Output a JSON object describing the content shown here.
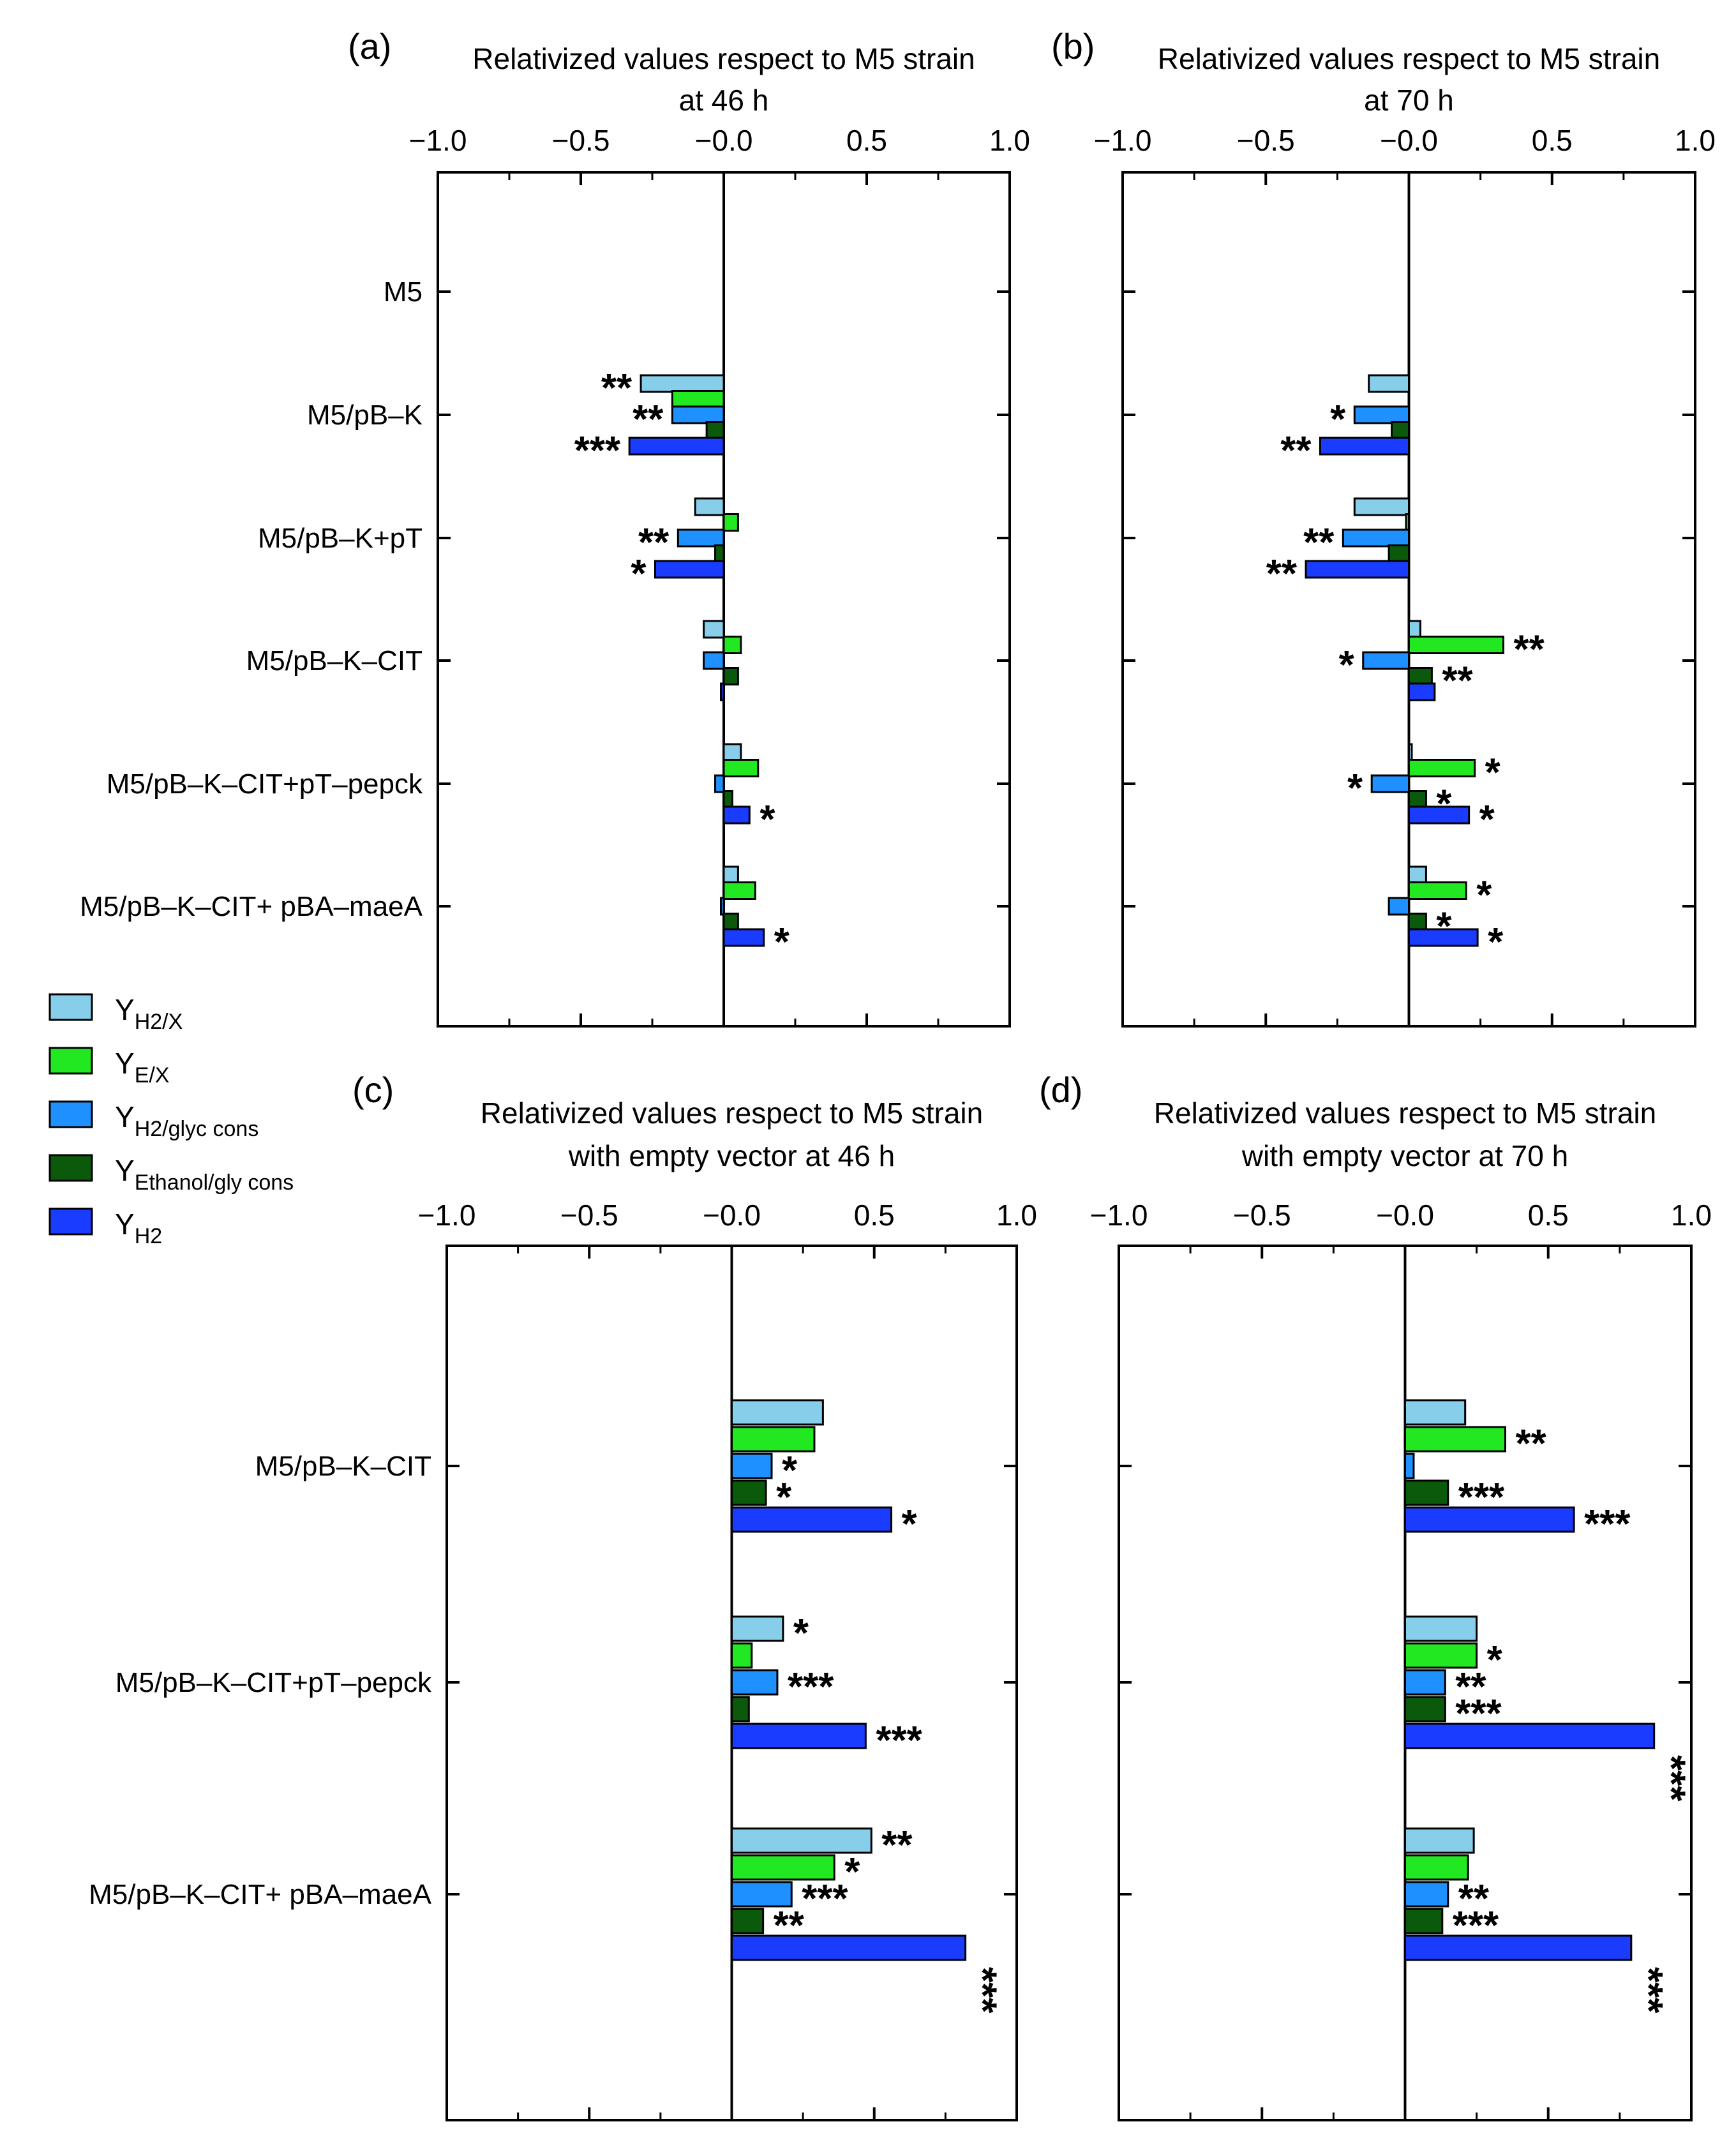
{
  "colors": {
    "y_h2_x": "#87ceeb",
    "y_e_x": "#22e822",
    "y_h2_glyc": "#1e90ff",
    "y_eth_gly": "#0b5a0b",
    "y_h2": "#1a3cff"
  },
  "legend": [
    {
      "key": "y_h2_x",
      "main": "Y",
      "sub": "H2/X"
    },
    {
      "key": "y_e_x",
      "main": "Y",
      "sub": "E/X"
    },
    {
      "key": "y_h2_glyc",
      "main": "Y",
      "sub": "H2/glyc cons"
    },
    {
      "key": "y_eth_gly",
      "main": "Y",
      "sub": "Ethanol/gly cons"
    },
    {
      "key": "y_h2",
      "main": "Y",
      "sub": "H2"
    }
  ],
  "chart_data": [
    {
      "panel": "(a)",
      "type": "bar",
      "orientation": "horizontal",
      "title_lines": [
        "Relativized values respect to M5 strain",
        "at 46 h"
      ],
      "xlim": [
        -1.0,
        1.0
      ],
      "xticks": [
        "−1.0",
        "−0.5",
        "−0.0",
        "0.5",
        "1.0"
      ],
      "xtick_values": [
        -1.0,
        -0.5,
        0.0,
        0.5,
        1.0
      ],
      "categories": [
        "M5",
        "M5/pB–K",
        "M5/pB–K+pT",
        "M5/pB–K–CIT",
        "M5/pB–K–CIT+pT–pepck",
        "M5/pB–K–CIT+ pBA–maeA"
      ],
      "series_keys": [
        "y_h2_x",
        "y_e_x",
        "y_h2_glyc",
        "y_eth_gly",
        "y_h2"
      ],
      "values": [
        [
          0,
          0,
          0,
          0,
          0
        ],
        [
          -0.29,
          -0.18,
          -0.18,
          -0.06,
          -0.33
        ],
        [
          -0.1,
          0.05,
          -0.16,
          -0.03,
          -0.24
        ],
        [
          -0.07,
          0.06,
          -0.07,
          0.05,
          -0.01
        ],
        [
          0.06,
          0.12,
          -0.03,
          0.03,
          0.09
        ],
        [
          0.05,
          0.11,
          -0.01,
          0.05,
          0.14
        ]
      ],
      "stars": [
        [
          "",
          "",
          "",
          "",
          ""
        ],
        [
          "**",
          "",
          "**",
          "",
          "***"
        ],
        [
          "",
          "",
          "**",
          "",
          "*"
        ],
        [
          "",
          "",
          "",
          "",
          ""
        ],
        [
          "",
          "",
          "",
          "",
          "*"
        ],
        [
          "",
          "",
          "",
          "",
          "*"
        ]
      ]
    },
    {
      "panel": "(b)",
      "type": "bar",
      "orientation": "horizontal",
      "title_lines": [
        "Relativized values respect to M5 strain",
        "at 70 h"
      ],
      "xlim": [
        -1.0,
        1.0
      ],
      "xticks": [
        "−1.0",
        "−0.5",
        "−0.0",
        "0.5",
        "1.0"
      ],
      "xtick_values": [
        -1.0,
        -0.5,
        0.0,
        0.5,
        1.0
      ],
      "categories": [
        "M5",
        "M5/pB–K",
        "M5/pB–K+pT",
        "M5/pB–K–CIT",
        "M5/pB–K–CIT+pT–pepck",
        "M5/pB–K–CIT+ pBA–maeA"
      ],
      "series_keys": [
        "y_h2_x",
        "y_e_x",
        "y_h2_glyc",
        "y_eth_gly",
        "y_h2"
      ],
      "values": [
        [
          0,
          0,
          0,
          0,
          0
        ],
        [
          -0.14,
          0,
          -0.19,
          -0.06,
          -0.31
        ],
        [
          -0.19,
          -0.01,
          -0.23,
          -0.07,
          -0.36
        ],
        [
          0.04,
          0.33,
          -0.16,
          0.08,
          0.09
        ],
        [
          0.01,
          0.23,
          -0.13,
          0.06,
          0.21
        ],
        [
          0.06,
          0.2,
          -0.07,
          0.06,
          0.24
        ]
      ],
      "stars": [
        [
          "",
          "",
          "",
          "",
          ""
        ],
        [
          "",
          "",
          "*",
          "",
          "**"
        ],
        [
          "",
          "",
          "**",
          "",
          "**"
        ],
        [
          "",
          "**",
          "*",
          "**",
          ""
        ],
        [
          "",
          "*",
          "*",
          "*",
          "*"
        ],
        [
          "",
          "*",
          "",
          "*",
          "*"
        ]
      ]
    },
    {
      "panel": "(c)",
      "type": "bar",
      "orientation": "horizontal",
      "title_lines": [
        "Relativized values respect to M5 strain",
        "with empty vector at 46 h"
      ],
      "xlim": [
        -1.0,
        1.0
      ],
      "xticks": [
        "−1.0",
        "−0.5",
        "−0.0",
        "0.5",
        "1.0"
      ],
      "xtick_values": [
        -1.0,
        -0.5,
        0.0,
        0.5,
        1.0
      ],
      "categories": [
        "M5/pB–K–CIT",
        "M5/pB–K–CIT+pT–pepck",
        "M5/pB–K–CIT+ pBA–maeA"
      ],
      "series_keys": [
        "y_h2_x",
        "y_e_x",
        "y_h2_glyc",
        "y_eth_gly",
        "y_h2"
      ],
      "values": [
        [
          0.32,
          0.29,
          0.14,
          0.12,
          0.56
        ],
        [
          0.18,
          0.07,
          0.16,
          0.06,
          0.47
        ],
        [
          0.49,
          0.36,
          0.21,
          0.11,
          0.82
        ]
      ],
      "stars": [
        [
          "",
          "",
          "*",
          "*",
          "*"
        ],
        [
          "*",
          "",
          "***",
          "",
          "***"
        ],
        [
          "**",
          "*",
          "***",
          "**",
          "***"
        ]
      ]
    },
    {
      "panel": "(d)",
      "type": "bar",
      "orientation": "horizontal",
      "title_lines": [
        "Relativized values respect to M5 strain",
        "with empty vector at 70 h"
      ],
      "xlim": [
        -1.0,
        1.0
      ],
      "xticks": [
        "−1.0",
        "−0.5",
        "−0.0",
        "0.5",
        "1.0"
      ],
      "xtick_values": [
        -1.0,
        -0.5,
        0.0,
        0.5,
        1.0
      ],
      "categories": [
        "M5/pB–K–CIT",
        "M5/pB–K–CIT+pT–pepck",
        "M5/pB–K–CIT+ pBA–maeA"
      ],
      "series_keys": [
        "y_h2_x",
        "y_e_x",
        "y_h2_glyc",
        "y_eth_gly",
        "y_h2"
      ],
      "values": [
        [
          0.21,
          0.35,
          0.03,
          0.15,
          0.59
        ],
        [
          0.25,
          0.25,
          0.14,
          0.14,
          0.87
        ],
        [
          0.24,
          0.22,
          0.15,
          0.13,
          0.79
        ]
      ],
      "stars": [
        [
          "",
          "**",
          "",
          "***",
          "***"
        ],
        [
          "",
          "*",
          "**",
          "***",
          "***"
        ],
        [
          "",
          "",
          "**",
          "***",
          "***"
        ]
      ]
    }
  ]
}
